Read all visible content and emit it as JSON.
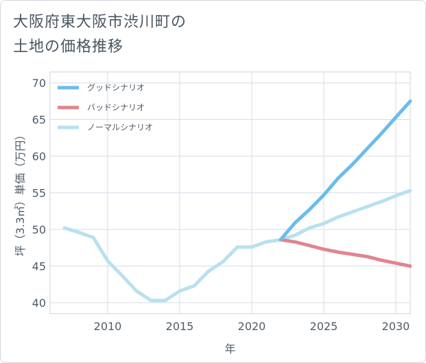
{
  "title_line1": "大阪府東大阪市渋川町の",
  "title_line2": "土地の価格推移",
  "chart_data": {
    "type": "line",
    "xlabel": "年",
    "ylabel": "坪（3.3㎡）単価（万円）",
    "xlim": [
      2006,
      2031
    ],
    "ylim": [
      38.5,
      71.5
    ],
    "xticks": [
      2010,
      2015,
      2020,
      2025,
      2030
    ],
    "yticks": [
      40,
      45,
      50,
      55,
      60,
      65,
      70
    ],
    "grid": true,
    "legend_position": "top-left",
    "series": [
      {
        "name": "グッドシナリオ",
        "color": "#6bbcec",
        "x": [
          2022,
          2023,
          2024,
          2025,
          2026,
          2027,
          2028,
          2029,
          2030,
          2031
        ],
        "y": [
          48.6,
          50.9,
          52.7,
          54.7,
          57.0,
          58.9,
          61.0,
          63.1,
          65.3,
          67.5
        ]
      },
      {
        "name": "バッドシナリオ",
        "color": "#e0858f",
        "x": [
          2022,
          2023,
          2024,
          2025,
          2026,
          2027,
          2028,
          2029,
          2030,
          2031
        ],
        "y": [
          48.6,
          48.3,
          47.8,
          47.3,
          46.9,
          46.6,
          46.3,
          45.8,
          45.4,
          45.0
        ]
      },
      {
        "name": "ノーマルシナリオ",
        "color": "#b8e0f0",
        "x": [
          2007,
          2008,
          2009,
          2010,
          2011,
          2012,
          2013,
          2014,
          2015,
          2016,
          2017,
          2018,
          2019,
          2020,
          2021,
          2022,
          2023,
          2024,
          2025,
          2026,
          2027,
          2028,
          2029,
          2030,
          2031
        ],
        "y": [
          50.2,
          49.6,
          48.9,
          45.7,
          43.7,
          41.6,
          40.3,
          40.3,
          41.6,
          42.3,
          44.3,
          45.6,
          47.6,
          47.6,
          48.3,
          48.6,
          49.2,
          50.2,
          50.8,
          51.7,
          52.4,
          53.1,
          53.8,
          54.6,
          55.3
        ]
      }
    ]
  }
}
